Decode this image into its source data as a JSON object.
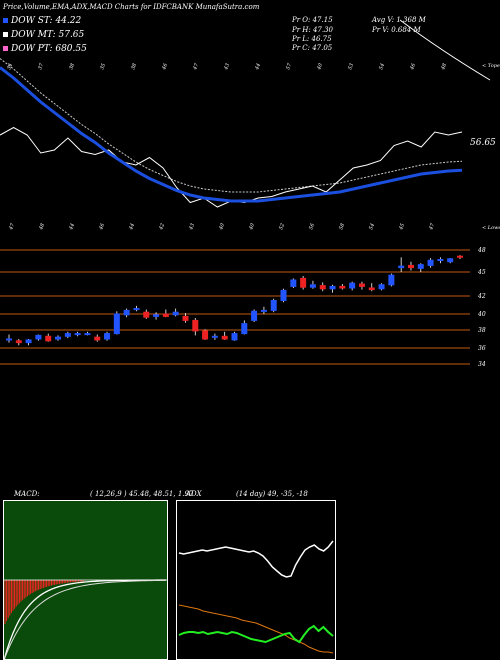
{
  "header": {
    "title": "Price,Volume,EMA,ADX,MACD Charts for IDFCBANK MunafaSutra.com",
    "dow_st_label": "DOW ST: 44.22",
    "dow_mt_label": "DOW MT: 57.65",
    "dow_pt_label": "DOW PT: 680.55",
    "pr_o": "Pr  O: 47.15",
    "pr_h": "Pr  H: 47.30",
    "pr_l": "Pr  L: 46.75",
    "pr_c": "Pr  C: 47.05",
    "avg_v": "Avg V: 1.368  M",
    "pr_v": "Pr  V: 0.684  M"
  },
  "colors": {
    "background": "#000000",
    "dow_st": "#2255ff",
    "dow_mt": "#ffffff",
    "dow_pt": "#ff66cc",
    "up_candle": "#2255ff",
    "down_candle": "#ee2222",
    "ema_line": "#1a4fe0",
    "price_line": "#ffffff",
    "ema_dotted": "#cccccc",
    "grid_orange": "#c25a12",
    "macd_bg": "#0a4a0a",
    "adx_green": "#22ee22",
    "adx_orange": "#dd7711"
  },
  "ema_panel": {
    "right_label": "56.65",
    "top_axis_label": "< Toper",
    "bottom_axis_label": "< Lower",
    "top_ticks": [
      "34",
      "37",
      "38",
      "35",
      "38",
      "46",
      "47",
      "43",
      "44",
      "57",
      "40",
      "53",
      "54",
      "46",
      "48"
    ],
    "bottom_ticks": [
      "47",
      "48",
      "44",
      "46",
      "44",
      "42",
      "43",
      "40",
      "40",
      "52",
      "56",
      "58",
      "54",
      "45",
      "47"
    ]
  },
  "chart_data": [
    {
      "type": "line",
      "name": "ema-price-panel",
      "series": [
        {
          "name": "",
          "values": [
            59.0,
            59.5,
            59.0,
            57.8,
            58.0,
            58.8,
            57.9,
            57.7,
            58.0,
            57.2,
            57.0,
            57.5,
            56.8,
            55.5,
            54.5,
            54.8,
            54.2,
            54.6,
            54.5,
            54.8,
            54.9,
            55.2,
            55.4,
            55.6,
            55.2,
            56.0,
            56.8,
            57.0,
            57.3,
            58.3,
            58.6,
            58.2,
            59.2,
            59.0,
            59.2
          ]
        },
        {
          "name": "",
          "values": [
            63.5,
            62.8,
            62.0,
            61.2,
            60.5,
            59.8,
            59.1,
            58.5,
            57.8,
            57.2,
            56.6,
            56.1,
            55.7,
            55.3,
            55.0,
            54.8,
            54.7,
            54.6,
            54.6,
            54.6,
            54.7,
            54.8,
            54.9,
            55.0,
            55.1,
            55.2,
            55.4,
            55.6,
            55.8,
            56.0,
            56.2,
            56.4,
            56.5,
            56.6,
            56.65
          ]
        }
      ]
    },
    {
      "type": "bar",
      "name": "candlestick-price",
      "yticks": [
        "48",
        "45",
        "42",
        "40",
        "38",
        "36",
        "34"
      ],
      "candles": [
        {
          "o": 36.9,
          "h": 37.5,
          "l": 36.6,
          "c": 37.0
        },
        {
          "o": 36.8,
          "h": 37.0,
          "l": 36.3,
          "c": 36.6
        },
        {
          "o": 36.6,
          "h": 37.0,
          "l": 36.3,
          "c": 36.9
        },
        {
          "o": 37.0,
          "h": 37.5,
          "l": 36.8,
          "c": 37.4
        },
        {
          "o": 37.3,
          "h": 37.6,
          "l": 36.7,
          "c": 36.8
        },
        {
          "o": 37.0,
          "h": 37.4,
          "l": 36.8,
          "c": 37.2
        },
        {
          "o": 37.3,
          "h": 37.8,
          "l": 37.1,
          "c": 37.6
        },
        {
          "o": 37.6,
          "h": 37.8,
          "l": 37.3,
          "c": 37.6
        },
        {
          "o": 37.6,
          "h": 37.8,
          "l": 37.4,
          "c": 37.6
        },
        {
          "o": 37.2,
          "h": 37.5,
          "l": 36.7,
          "c": 36.9
        },
        {
          "o": 37.0,
          "h": 37.8,
          "l": 36.8,
          "c": 37.6
        },
        {
          "o": 37.6,
          "h": 40.3,
          "l": 37.5,
          "c": 40.0
        },
        {
          "o": 39.9,
          "h": 40.6,
          "l": 39.6,
          "c": 40.4
        },
        {
          "o": 40.5,
          "h": 40.9,
          "l": 40.3,
          "c": 40.6
        },
        {
          "o": 40.2,
          "h": 40.5,
          "l": 39.4,
          "c": 39.6
        },
        {
          "o": 39.7,
          "h": 40.2,
          "l": 39.3,
          "c": 39.9
        },
        {
          "o": 40.0,
          "h": 40.5,
          "l": 39.6,
          "c": 39.7
        },
        {
          "o": 39.9,
          "h": 40.6,
          "l": 39.7,
          "c": 40.2
        },
        {
          "o": 39.7,
          "h": 40.1,
          "l": 38.9,
          "c": 39.2
        },
        {
          "o": 39.2,
          "h": 39.5,
          "l": 37.4,
          "c": 37.9
        },
        {
          "o": 37.9,
          "h": 38.1,
          "l": 36.9,
          "c": 37.0
        },
        {
          "o": 37.2,
          "h": 37.6,
          "l": 36.9,
          "c": 37.3
        },
        {
          "o": 37.3,
          "h": 37.8,
          "l": 36.9,
          "c": 37.0
        },
        {
          "o": 36.9,
          "h": 37.8,
          "l": 36.8,
          "c": 37.6
        },
        {
          "o": 37.6,
          "h": 39.2,
          "l": 37.5,
          "c": 38.8
        },
        {
          "o": 39.2,
          "h": 40.5,
          "l": 39.0,
          "c": 40.3
        },
        {
          "o": 40.3,
          "h": 40.8,
          "l": 40.0,
          "c": 40.4
        },
        {
          "o": 40.4,
          "h": 41.7,
          "l": 40.2,
          "c": 41.5
        },
        {
          "o": 41.5,
          "h": 42.9,
          "l": 41.3,
          "c": 42.7
        },
        {
          "o": 43.2,
          "h": 44.2,
          "l": 43.0,
          "c": 44.0
        },
        {
          "o": 44.2,
          "h": 44.5,
          "l": 42.8,
          "c": 43.1
        },
        {
          "o": 43.1,
          "h": 43.9,
          "l": 42.9,
          "c": 43.4
        },
        {
          "o": 43.3,
          "h": 43.7,
          "l": 42.6,
          "c": 42.9
        },
        {
          "o": 42.9,
          "h": 43.4,
          "l": 42.4,
          "c": 43.2
        },
        {
          "o": 43.2,
          "h": 43.5,
          "l": 42.8,
          "c": 43.0
        },
        {
          "o": 43.0,
          "h": 43.8,
          "l": 42.7,
          "c": 43.6
        },
        {
          "o": 43.5,
          "h": 43.8,
          "l": 42.8,
          "c": 43.2
        },
        {
          "o": 43.0,
          "h": 43.6,
          "l": 42.6,
          "c": 42.8
        },
        {
          "o": 42.9,
          "h": 43.6,
          "l": 42.7,
          "c": 43.4
        },
        {
          "o": 43.4,
          "h": 44.8,
          "l": 43.2,
          "c": 44.6
        },
        {
          "o": 45.6,
          "h": 47.0,
          "l": 45.0,
          "c": 45.8
        },
        {
          "o": 45.9,
          "h": 46.4,
          "l": 45.2,
          "c": 45.6
        },
        {
          "o": 45.5,
          "h": 46.2,
          "l": 45.0,
          "c": 46.0
        },
        {
          "o": 45.9,
          "h": 46.9,
          "l": 45.6,
          "c": 46.6
        },
        {
          "o": 46.7,
          "h": 47.0,
          "l": 46.2,
          "c": 46.7
        },
        {
          "o": 46.4,
          "h": 46.9,
          "l": 46.2,
          "c": 46.8
        },
        {
          "o": 47.15,
          "h": 47.3,
          "l": 46.75,
          "c": 47.05
        }
      ]
    },
    {
      "type": "bar",
      "name": "macd",
      "title": "MACD:",
      "params": "( 12,26,9 ) 45.48, 48.51, 1.97"
    },
    {
      "type": "line",
      "name": "adx",
      "title": "ADX",
      "params": "(14  day) 49,  -35,  -18"
    }
  ]
}
